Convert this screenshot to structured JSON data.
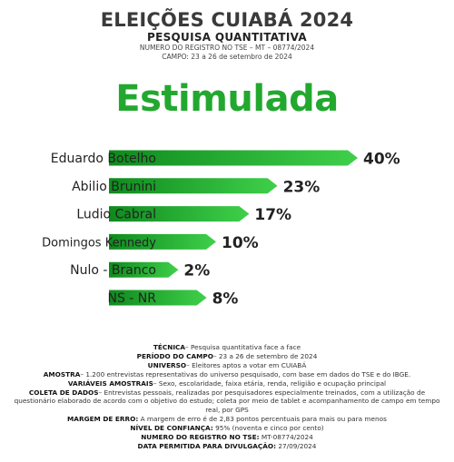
{
  "header": {
    "title": "ELEIÇÕES CUIABÁ 2024",
    "subtitle": "PESQUISA QUANTITATIVA",
    "registro": "NUMERO DO REGISTRO NO TSE – MT – 08774/2024",
    "campo": "CAMPO: 23 a 26 de setembro de 2024"
  },
  "headline": "Estimulada",
  "chart_data": {
    "type": "bar",
    "orientation": "horizontal",
    "categories": [
      "Eduardo Botelho",
      "Abilio Brunini",
      "Ludio Cabral",
      "Domingos Kennedy",
      "Nulo - Branco",
      "NS - NR"
    ],
    "values": [
      40,
      23,
      17,
      10,
      2,
      8
    ],
    "value_labels": [
      "40%",
      "23%",
      "17%",
      "10%",
      "2%",
      "8%"
    ],
    "colors": {
      "bar_dark": "#0f8a1e",
      "bar_light": "#3fd04a"
    },
    "grid": false,
    "legend": "none"
  },
  "footer": {
    "tecnica_label": "TÉCNICA",
    "tecnica": "– Pesquisa quantitativa face a face",
    "periodo_label": "PERÍODO DO CAMPO",
    "periodo": "– 23 a 26 de setembro de 2024",
    "universo_label": "UNIVERSO",
    "universo": "– Eleitores aptos a votar em CUIABÁ",
    "amostra_label": "AMOSTRA",
    "amostra": "– 1.200 entrevistas representativas do universo pesquisado, com base em dados do TSE e do IBGE.",
    "variaveis_label": "VARIÁVEIS AMOSTRAIS",
    "variaveis": "– Sexo, escolaridade, faixa etária, renda, religião e ocupação principal",
    "coleta_label": "COLETA DE DADOS",
    "coleta": "– Entrevistas pessoais, realizadas por pesquisadores especialmente treinados, com a utilização de questionário elaborado de acordo com o objetivo do estudo; coleta por meio de tablet e acompanhamento de campo em tempo real, por GPS",
    "margem_label": "MARGEM DE ERRO:",
    "margem": " A margem de erro é de 2,83 pontos percentuais para mais ou para menos",
    "confianca_label": "NÍVEL DE CONFIANÇA:",
    "confianca": " 95% (noventa e cinco por cento)",
    "registro_label": "NUMERO DO REGISTRO NO TSE:",
    "registro": " MT-08774/2024",
    "data_label": "DATA PERMITIDA PARA DIVULGAÇÃO:",
    "data": " 27/09/2024"
  }
}
